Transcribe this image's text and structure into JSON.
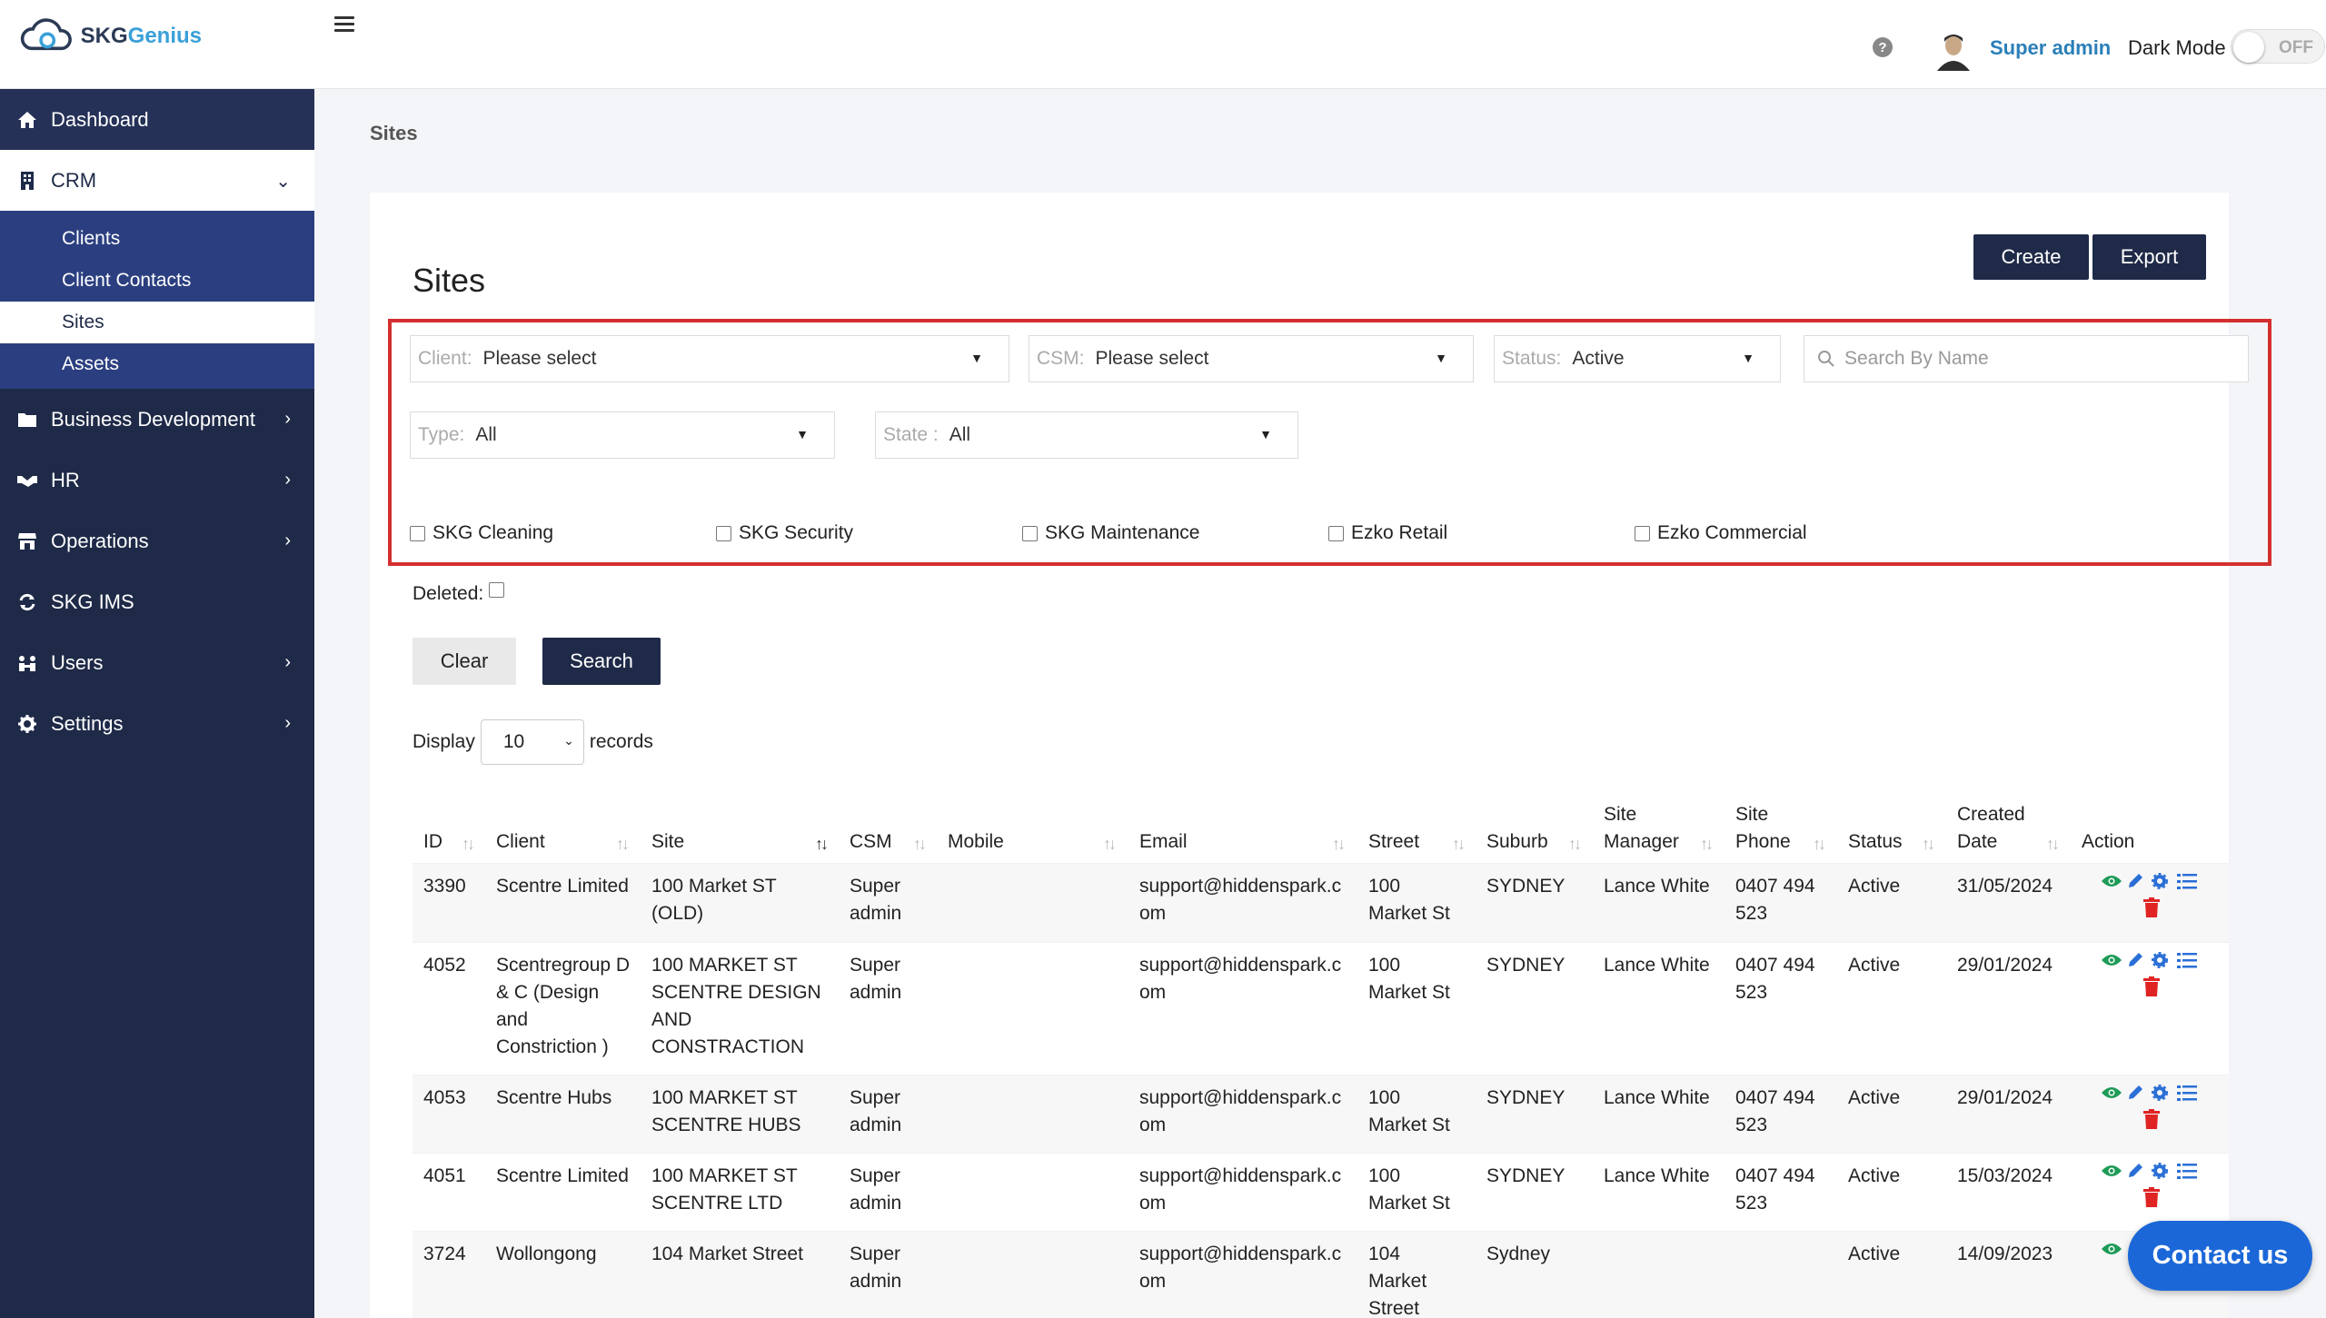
{
  "app": {
    "logo_text_a": "SKG",
    "logo_text_b": "enius"
  },
  "header": {
    "user_name": "Super admin",
    "dark_mode_label": "Dark Mode",
    "toggle_state": "OFF",
    "help": "?"
  },
  "sidebar": {
    "items": [
      {
        "label": "Dashboard",
        "icon": "home-icon"
      },
      {
        "label": "CRM",
        "icon": "building-icon"
      },
      {
        "label": "Business Development",
        "icon": "folder-icon"
      },
      {
        "label": "HR",
        "icon": "handshake-icon"
      },
      {
        "label": "Operations",
        "icon": "store-icon"
      },
      {
        "label": "SKG IMS",
        "icon": "sync-icon"
      },
      {
        "label": "Users",
        "icon": "users-icon"
      },
      {
        "label": "Settings",
        "icon": "gear-icon"
      }
    ],
    "crm_sub": [
      "Clients",
      "Client Contacts",
      "Sites",
      "Assets"
    ]
  },
  "breadcrumb": "Sites",
  "page": {
    "title": "Sites",
    "create": "Create",
    "export": "Export"
  },
  "filters": {
    "client_label": "Client:",
    "client_value": "Please select",
    "csm_label": "CSM:",
    "csm_value": "Please select",
    "status_label": "Status:",
    "status_value": "Active",
    "search_placeholder": "Search By Name",
    "type_label": "Type:",
    "type_value": "All",
    "state_label": "State :",
    "state_value": "All",
    "checkboxes": [
      "SKG Cleaning",
      "SKG Security",
      "SKG Maintenance",
      "Ezko Retail",
      "Ezko Commercial"
    ],
    "deleted_label": "Deleted:",
    "clear": "Clear",
    "search": "Search"
  },
  "display": {
    "prefix": "Display",
    "value": "10",
    "suffix": "records"
  },
  "table": {
    "headers": [
      "ID",
      "Client",
      "Site",
      "CSM",
      "Mobile",
      "Email",
      "Street",
      "Suburb",
      "Site Manager",
      "Site Phone",
      "Status",
      "Created Date",
      "Action"
    ],
    "rows": [
      {
        "id": "3390",
        "client": "Scentre Limited",
        "site": "100 Market ST (OLD)",
        "csm": "Super admin",
        "mobile": "",
        "email": "support@hiddenspark.com",
        "street": "100 Market St",
        "suburb": "SYDNEY",
        "manager": "Lance White",
        "phone": "0407 494 523",
        "status": "Active",
        "created": "31/05/2024"
      },
      {
        "id": "4052",
        "client": "Scentregroup D & C (Design and Constriction )",
        "site": "100 MARKET ST SCENTRE DESIGN AND CONSTRACTION",
        "csm": "Super admin",
        "mobile": "",
        "email": "support@hiddenspark.com",
        "street": "100 Market St",
        "suburb": "SYDNEY",
        "manager": "Lance White",
        "phone": "0407 494 523",
        "status": "Active",
        "created": "29/01/2024"
      },
      {
        "id": "4053",
        "client": "Scentre Hubs",
        "site": "100 MARKET ST SCENTRE HUBS",
        "csm": "Super admin",
        "mobile": "",
        "email": "support@hiddenspark.com",
        "street": "100 Market St",
        "suburb": "SYDNEY",
        "manager": "Lance White",
        "phone": "0407 494 523",
        "status": "Active",
        "created": "29/01/2024"
      },
      {
        "id": "4051",
        "client": "Scentre Limited",
        "site": "100 MARKET ST SCENTRE LTD",
        "csm": "Super admin",
        "mobile": "",
        "email": "support@hiddenspark.com",
        "street": "100 Market St",
        "suburb": "SYDNEY",
        "manager": "Lance White",
        "phone": "0407 494 523",
        "status": "Active",
        "created": "15/03/2024"
      },
      {
        "id": "3724",
        "client": "Wollongong",
        "site": "104 Market Street",
        "csm": "Super admin",
        "mobile": "",
        "email": "support@hiddenspark.com",
        "street": "104 Market Street",
        "suburb": "Sydney",
        "manager": "",
        "phone": "",
        "status": "Active",
        "created": "14/09/2023"
      }
    ]
  },
  "contact_button": "Contact us",
  "colors": {
    "sidebar": "#1f2a48",
    "sub_menu": "#2b3f80",
    "primary_button": "#1f2a48",
    "highlight_border": "#d32f2f",
    "contact": "#1b67d8"
  }
}
